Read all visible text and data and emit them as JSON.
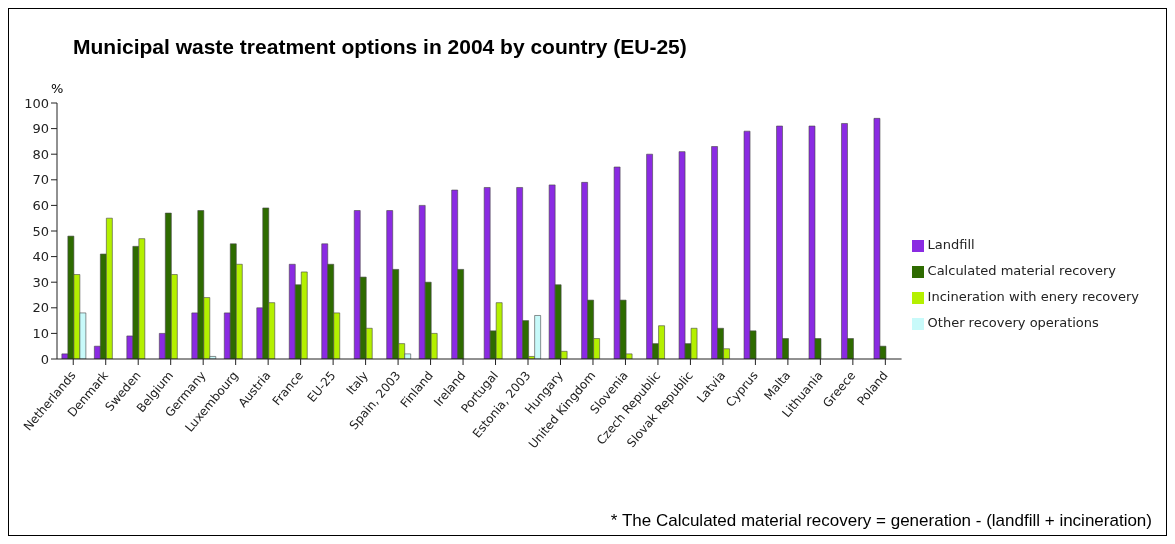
{
  "chart_data": {
    "type": "bar",
    "title": "Municipal waste treatment options in 2004 by country (EU-25)",
    "ylabel": "%",
    "categories": [
      "Netherlands",
      "Denmark",
      "Sweden",
      "Belgium",
      "Germany",
      "Luxembourg",
      "Austria",
      "France",
      "EU-25",
      "Italy",
      "Spain, 2003",
      "Finland",
      "Ireland",
      "Portugal",
      "Estonia, 2003",
      "Hungary",
      "United Kingdom",
      "Slovenia",
      "Czech Republic",
      "Slovak Republic",
      "Latvia",
      "Cyprus",
      "Malta",
      "Lithuania",
      "Greece",
      "Poland"
    ],
    "series": [
      {
        "name": "Landfill",
        "color": "#8a2be2",
        "values": [
          2,
          5,
          9,
          10,
          18,
          18,
          20,
          37,
          45,
          58,
          58,
          60,
          66,
          67,
          67,
          68,
          69,
          75,
          80,
          81,
          83,
          89,
          91,
          91,
          92,
          94
        ]
      },
      {
        "name": "Calculated material recovery",
        "color": "#2e6b00",
        "values": [
          48,
          41,
          44,
          57,
          58,
          45,
          59,
          29,
          37,
          32,
          35,
          30,
          35,
          11,
          15,
          29,
          23,
          23,
          6,
          6,
          12,
          11,
          8,
          8,
          8,
          5
        ]
      },
      {
        "name": "Incineration with enery recovery",
        "color": "#b4f000",
        "values": [
          33,
          55,
          47,
          33,
          24,
          37,
          22,
          34,
          18,
          12,
          6,
          10,
          null,
          22,
          1,
          3,
          8,
          2,
          13,
          12,
          4,
          null,
          null,
          null,
          null,
          null
        ]
      },
      {
        "name": "Other recovery operations",
        "color": "#c8fafa",
        "values": [
          18,
          null,
          null,
          null,
          1,
          null,
          null,
          null,
          null,
          null,
          2,
          null,
          null,
          null,
          17,
          null,
          null,
          null,
          null,
          null,
          null,
          null,
          null,
          null,
          null,
          null
        ]
      }
    ],
    "ylim": [
      0,
      100
    ],
    "yticks": [
      0,
      10,
      20,
      30,
      40,
      50,
      60,
      70,
      80,
      90,
      100
    ],
    "grid": false,
    "legend": "right",
    "annotations": [
      "* The Calculated material recovery = generation - (landfill + incineration)"
    ]
  }
}
